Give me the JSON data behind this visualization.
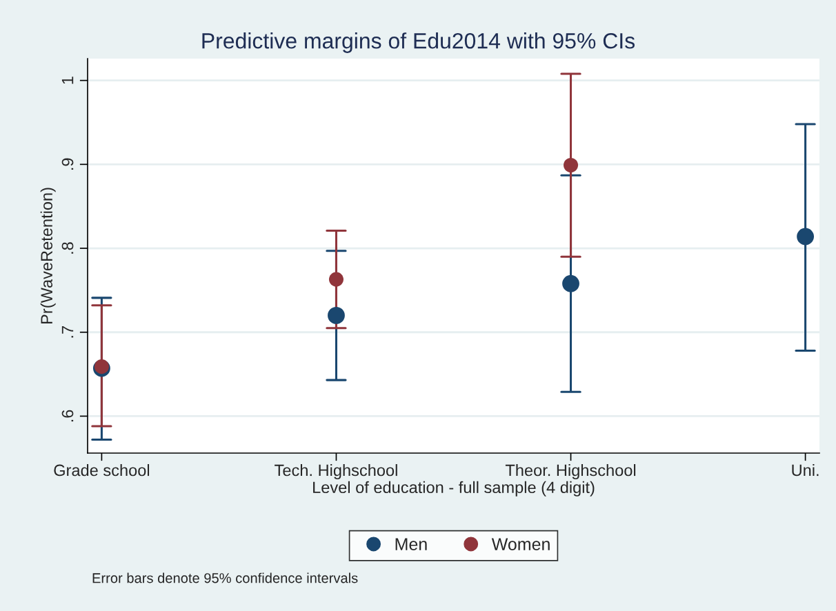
{
  "chart_data": {
    "type": "scatter",
    "title": "Predictive margins of Edu2014 with 95% CIs",
    "xlabel": "Level of education - full sample (4 digit)",
    "ylabel": "Pr(WaveRetention)",
    "categories": [
      "Grade school",
      "Tech. Highschool",
      "Theor. Highschool",
      "Uni."
    ],
    "series": [
      {
        "name": "Men",
        "color": "#1a476f",
        "values": [
          0.657,
          0.72,
          0.758,
          0.814
        ],
        "errors": [
          [
            0.572,
            0.741
          ],
          [
            0.643,
            0.797
          ],
          [
            0.629,
            0.887
          ],
          [
            0.678,
            0.948
          ]
        ]
      },
      {
        "name": "Women",
        "color": "#90353b",
        "values": [
          0.659,
          0.763,
          0.899,
          null
        ],
        "errors": [
          [
            0.588,
            0.732
          ],
          [
            0.705,
            0.821
          ],
          [
            0.79,
            1.008
          ],
          null
        ]
      }
    ],
    "ylim": [
      0.556,
      1.026
    ],
    "yticks": [
      {
        "value": 0.6,
        "label": ".6"
      },
      {
        "value": 0.7,
        "label": ".7"
      },
      {
        "value": 0.8,
        "label": ".8"
      },
      {
        "value": 0.9,
        "label": ".9"
      },
      {
        "value": 1,
        "label": "1"
      }
    ],
    "grid": "y",
    "legend": "bottom",
    "marker": "circle",
    "annotations": [
      "Error bars denote 95% confidence intervals"
    ]
  }
}
